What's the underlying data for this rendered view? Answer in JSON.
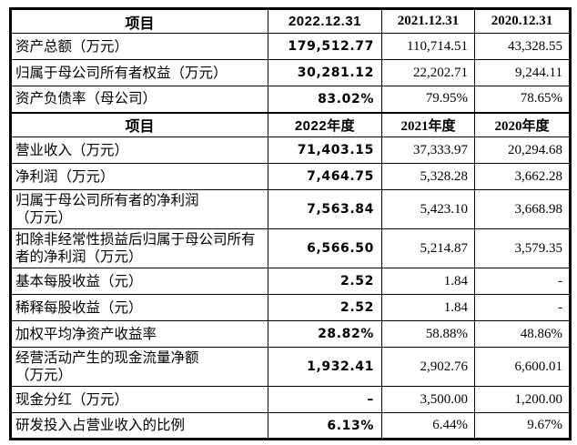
{
  "table": {
    "name": "financial-summary",
    "sections": [
      {
        "header": {
          "label": "项目",
          "periods": [
            "2022.12.31",
            "2021.12.31",
            "2020.12.31"
          ]
        },
        "rows": [
          {
            "label": "资产总额（万元）",
            "values": [
              "179,512.77",
              "110,714.51",
              "43,328.55"
            ]
          },
          {
            "label": "归属于母公司所有者权益（万元）",
            "values": [
              "30,281.12",
              "22,202.71",
              "9,244.11"
            ]
          },
          {
            "label": "资产负债率（母公司）",
            "values": [
              "83.02%",
              "79.95%",
              "78.65%"
            ]
          }
        ]
      },
      {
        "header": {
          "label": "项目",
          "periods": [
            "2022年度",
            "2021年度",
            "2020年度"
          ]
        },
        "rows": [
          {
            "label": "营业收入（万元）",
            "values": [
              "71,403.15",
              "37,333.97",
              "20,294.68"
            ]
          },
          {
            "label": "净利润（万元）",
            "values": [
              "7,464.75",
              "5,328.28",
              "3,662.28"
            ]
          },
          {
            "label": "归属于母公司所有者的净利润\n（万元）",
            "values": [
              "7,563.84",
              "5,423.10",
              "3,668.98"
            ]
          },
          {
            "label": "扣除非经常性损益后归属于母公司所有\n者的净利润（万元）",
            "values": [
              "6,566.50",
              "5,214.87",
              "3,579.35"
            ]
          },
          {
            "label": "基本每股收益（元）",
            "values": [
              "2.52",
              "1.84",
              "-"
            ]
          },
          {
            "label": "稀释每股收益（元）",
            "values": [
              "2.52",
              "1.84",
              "-"
            ]
          },
          {
            "label": "加权平均净资产收益率",
            "values": [
              "28.82%",
              "58.88%",
              "48.86%"
            ]
          },
          {
            "label": "经营活动产生的现金流量净额\n（万元）",
            "values": [
              "1,932.41",
              "2,902.76",
              "6,600.01"
            ]
          },
          {
            "label": "现金分红（万元）",
            "values": [
              "–",
              "3,500.00",
              "1,200.00"
            ]
          },
          {
            "label": "研发投入占营业收入的比例",
            "values": [
              "6.13%",
              "6.44%",
              "9.67%"
            ]
          }
        ]
      }
    ]
  }
}
